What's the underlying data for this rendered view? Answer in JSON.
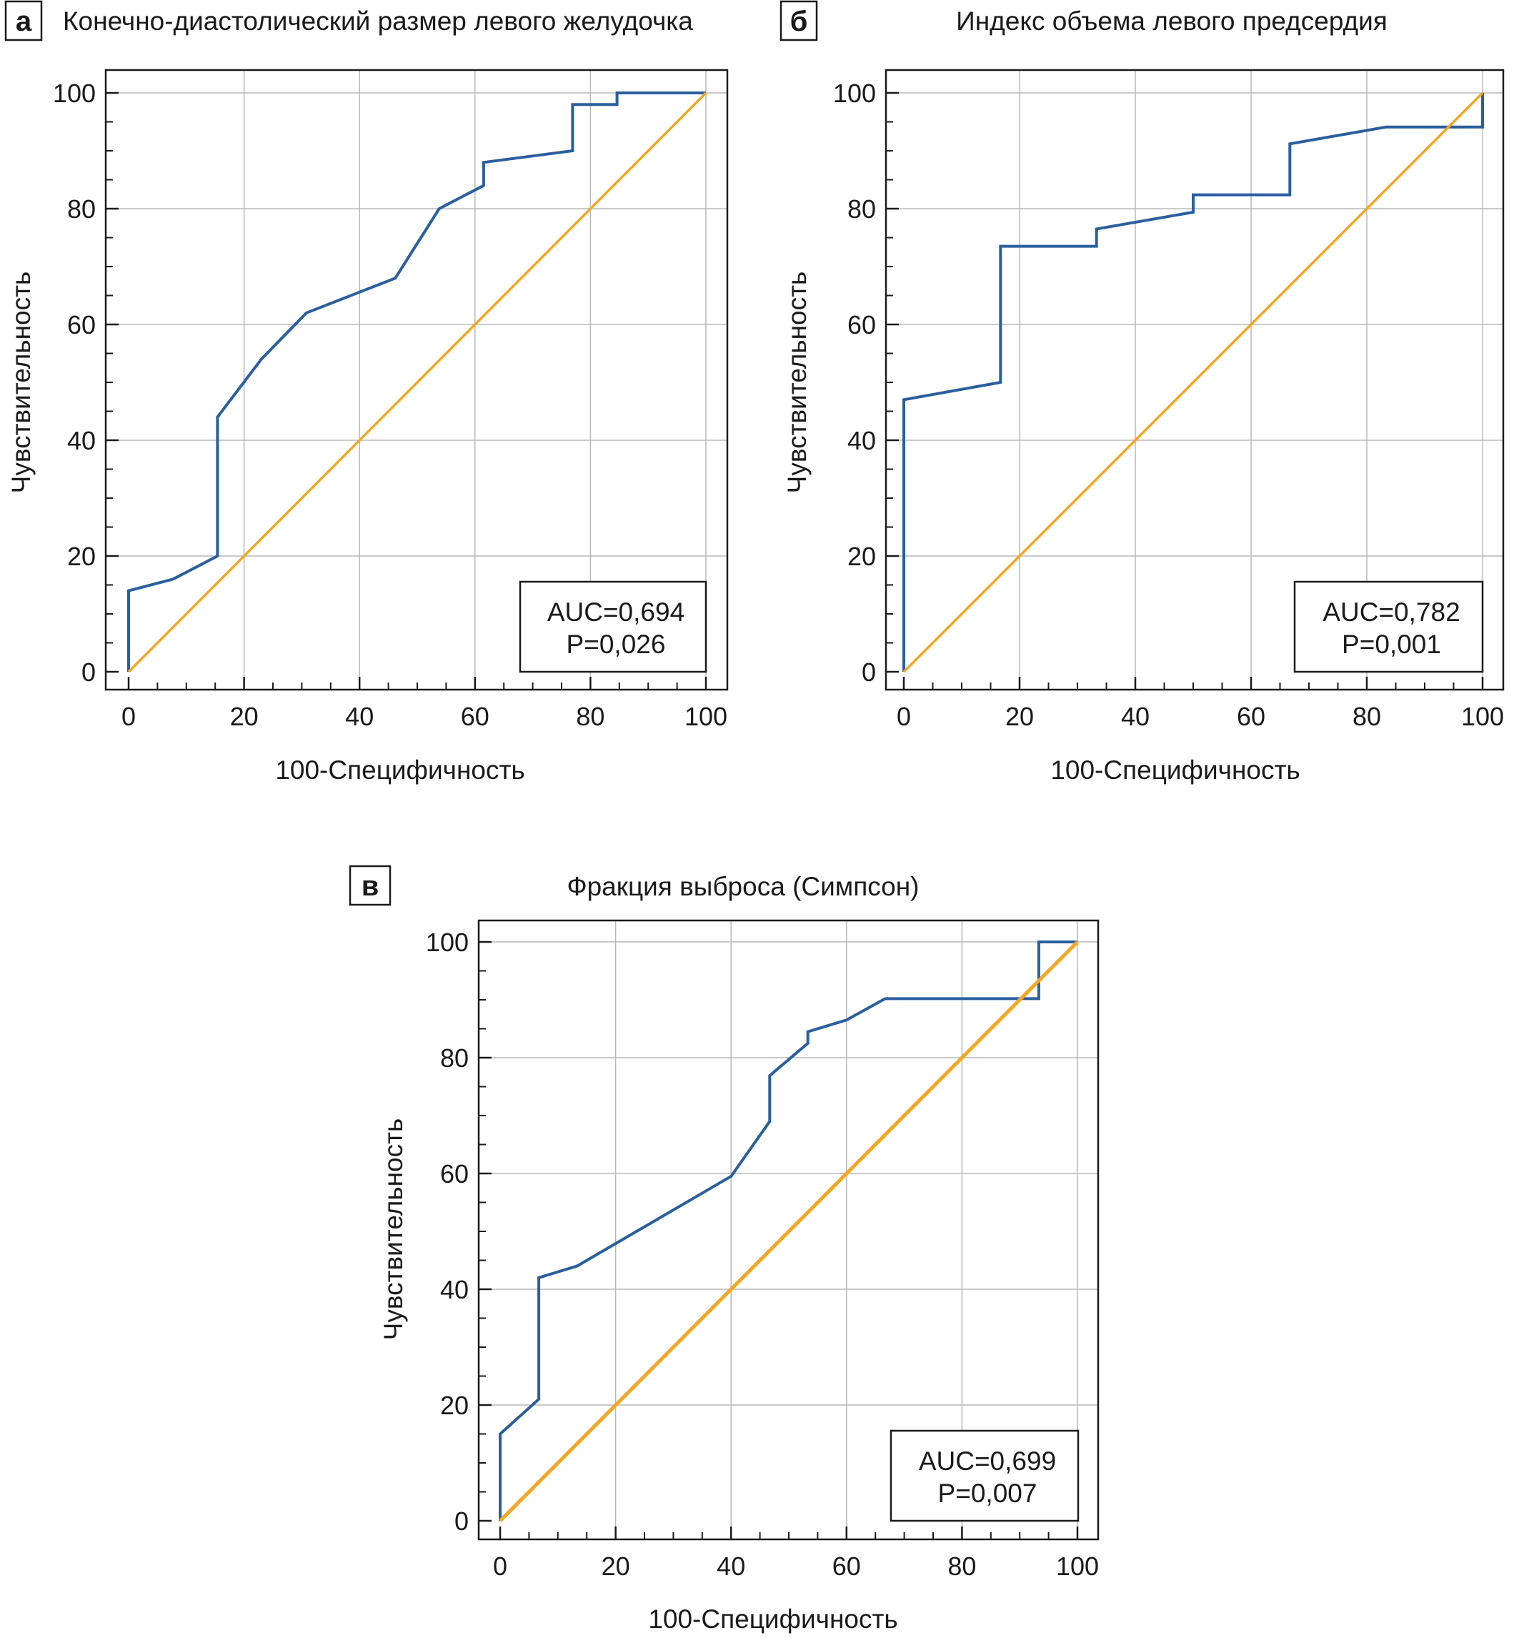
{
  "colors": {
    "roc": "#2a5f9e",
    "reference": "#f5a623",
    "grid": "#b8b8b8",
    "axis": "#1a1a1a"
  },
  "chart_data": [
    {
      "type": "line",
      "panel_label": "а",
      "title": "Конечно-диастолический размер левого желудочка",
      "xlabel": "100-Специфичность",
      "ylabel": "Чувствительность",
      "xlim": [
        0,
        100
      ],
      "ylim": [
        0,
        100
      ],
      "x_ticks": [
        "0",
        "20",
        "40",
        "60",
        "80",
        "100"
      ],
      "y_ticks": [
        "0",
        "20",
        "40",
        "60",
        "80",
        "100"
      ],
      "grid": true,
      "auc_text": "AUC=0,694",
      "p_text": "P=0,026",
      "series": [
        {
          "role": "roc",
          "points": [
            [
              0,
              0
            ],
            [
              0,
              14
            ],
            [
              7.7,
              16
            ],
            [
              15.4,
              20
            ],
            [
              15.4,
              44
            ],
            [
              23,
              54
            ],
            [
              30.8,
              62
            ],
            [
              46.2,
              68
            ],
            [
              53.8,
              80
            ],
            [
              61.5,
              84
            ],
            [
              61.5,
              88
            ],
            [
              76.9,
              90
            ],
            [
              76.9,
              98
            ],
            [
              84.6,
              98
            ],
            [
              84.6,
              100
            ],
            [
              100,
              100
            ]
          ]
        },
        {
          "role": "reference",
          "points": [
            [
              0,
              0
            ],
            [
              100,
              100
            ]
          ]
        }
      ]
    },
    {
      "type": "line",
      "panel_label": "б",
      "title": "Индекс объема левого предсердия",
      "xlabel": "100-Специфичность",
      "ylabel": "Чувствительность",
      "xlim": [
        0,
        100
      ],
      "ylim": [
        0,
        100
      ],
      "x_ticks": [
        "0",
        "20",
        "40",
        "60",
        "80",
        "100"
      ],
      "y_ticks": [
        "0",
        "20",
        "40",
        "60",
        "80",
        "100"
      ],
      "grid": true,
      "auc_text": "AUC=0,782",
      "p_text": "P=0,001",
      "series": [
        {
          "role": "roc",
          "points": [
            [
              0,
              0
            ],
            [
              0,
              47
            ],
            [
              16.7,
              50
            ],
            [
              16.7,
              73.5
            ],
            [
              33.3,
              73.5
            ],
            [
              33.3,
              76.5
            ],
            [
              50,
              79.4
            ],
            [
              50,
              82.4
            ],
            [
              66.7,
              82.4
            ],
            [
              66.7,
              91.2
            ],
            [
              83.3,
              94.1
            ],
            [
              100,
              94.1
            ],
            [
              100,
              100
            ]
          ]
        },
        {
          "role": "reference",
          "points": [
            [
              0,
              0
            ],
            [
              100,
              100
            ]
          ]
        }
      ]
    },
    {
      "type": "line",
      "panel_label": "в",
      "title": "Фракция выброса (Симпсон)",
      "xlabel": "100-Специфичность",
      "ylabel": "Чувствительность",
      "xlim": [
        0,
        100
      ],
      "ylim": [
        0,
        100
      ],
      "x_ticks": [
        "0",
        "20",
        "40",
        "60",
        "80",
        "100"
      ],
      "y_ticks": [
        "0",
        "20",
        "40",
        "60",
        "80",
        "100"
      ],
      "grid": true,
      "auc_text": "AUC=0,699",
      "p_text": "P=0,007",
      "series": [
        {
          "role": "roc",
          "points": [
            [
              0,
              0
            ],
            [
              0,
              15
            ],
            [
              6.7,
              21
            ],
            [
              6.7,
              42
            ],
            [
              13.3,
              44
            ],
            [
              40,
              59.5
            ],
            [
              46.7,
              69
            ],
            [
              46.7,
              76.9
            ],
            [
              53.3,
              82.5
            ],
            [
              53.3,
              84.5
            ],
            [
              60,
              86.5
            ],
            [
              66.7,
              90.2
            ],
            [
              93.3,
              90.2
            ],
            [
              93.3,
              100
            ],
            [
              100,
              100
            ]
          ]
        },
        {
          "role": "reference",
          "points": [
            [
              0,
              0
            ],
            [
              100,
              100
            ]
          ]
        }
      ]
    }
  ]
}
